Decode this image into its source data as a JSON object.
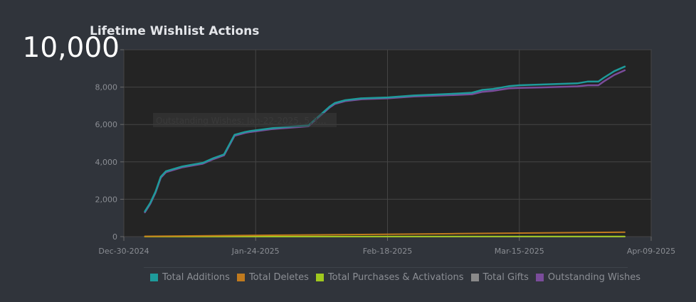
{
  "chart_data": {
    "type": "line",
    "title": "Lifetime Wishlist Actions",
    "x_axis": {
      "type": "date",
      "ticks": [
        "Dec-30-2024",
        "Jan-24-2025",
        "Feb-18-2025",
        "Mar-15-2025",
        "Apr-09-2025"
      ],
      "range": [
        "Dec-30-2024",
        "Apr-09-2025"
      ]
    },
    "y_axis": {
      "ticks": [
        "0",
        "2,000",
        "4,000",
        "6,000",
        "8,000",
        "10,000"
      ],
      "range": [
        0,
        10000
      ]
    },
    "grid": true,
    "legend_position": "bottom",
    "tooltip": "Outstanding Wishes: Jan-22-2025, 5,3…",
    "series": [
      {
        "name": "Total Additions",
        "color": "#1e9b9b",
        "x": [
          "Jan-03-2025",
          "Jan-04-2025",
          "Jan-05-2025",
          "Jan-06-2025",
          "Jan-07-2025",
          "Jan-10-2025",
          "Jan-14-2025",
          "Jan-16-2025",
          "Jan-18-2025",
          "Jan-20-2025",
          "Jan-22-2025",
          "Jan-23-2025",
          "Jan-27-2025",
          "Jan-29-2025",
          "Feb-03-2025",
          "Feb-06-2025",
          "Feb-07-2025",
          "Feb-08-2025",
          "Feb-10-2025",
          "Feb-13-2025",
          "Feb-18-2025",
          "Feb-23-2025",
          "Mar-03-2025",
          "Mar-06-2025",
          "Mar-08-2025",
          "Mar-10-2025",
          "Mar-13-2025",
          "Mar-15-2025",
          "Mar-20-2025",
          "Mar-26-2025",
          "Mar-28-2025",
          "Mar-30-2025",
          "Mar-31-2025",
          "Apr-02-2025",
          "Apr-04-2025"
        ],
        "values": [
          1350,
          1800,
          2400,
          3200,
          3500,
          3750,
          3950,
          4200,
          4400,
          5450,
          5600,
          5650,
          5800,
          5850,
          5950,
          6700,
          6950,
          7150,
          7300,
          7400,
          7450,
          7550,
          7650,
          7700,
          7850,
          7900,
          8050,
          8100,
          8150,
          8200,
          8300,
          8300,
          8500,
          8850,
          9100
        ]
      },
      {
        "name": "Total Deletes",
        "color": "#c07a1e",
        "x": [
          "Jan-03-2025",
          "Feb-03-2025",
          "Mar-03-2025",
          "Apr-04-2025"
        ],
        "values": [
          20,
          90,
          160,
          240
        ]
      },
      {
        "name": "Total Purchases & Activations",
        "color": "#a0c81e",
        "x": [
          "Jan-03-2025",
          "Apr-04-2025"
        ],
        "values": [
          0,
          10
        ]
      },
      {
        "name": "Total Gifts",
        "color": "#8a8a8a",
        "x": [
          "Jan-03-2025",
          "Apr-04-2025"
        ],
        "values": [
          0,
          0
        ]
      },
      {
        "name": "Outstanding Wishes",
        "color": "#7a4c9a",
        "x": [
          "Jan-03-2025",
          "Jan-04-2025",
          "Jan-05-2025",
          "Jan-06-2025",
          "Jan-07-2025",
          "Jan-10-2025",
          "Jan-14-2025",
          "Jan-16-2025",
          "Jan-18-2025",
          "Jan-20-2025",
          "Jan-22-2025",
          "Jan-23-2025",
          "Jan-27-2025",
          "Jan-29-2025",
          "Feb-03-2025",
          "Feb-06-2025",
          "Feb-07-2025",
          "Feb-08-2025",
          "Feb-10-2025",
          "Feb-13-2025",
          "Feb-18-2025",
          "Feb-23-2025",
          "Mar-03-2025",
          "Mar-06-2025",
          "Mar-08-2025",
          "Mar-10-2025",
          "Mar-13-2025",
          "Mar-15-2025",
          "Mar-20-2025",
          "Mar-26-2025",
          "Mar-28-2025",
          "Mar-30-2025",
          "Mar-31-2025",
          "Apr-02-2025",
          "Apr-04-2025"
        ],
        "values": [
          1300,
          1750,
          2350,
          3150,
          3450,
          3700,
          3900,
          4150,
          4350,
          5400,
          5550,
          5600,
          5750,
          5800,
          5900,
          6650,
          6900,
          7100,
          7250,
          7350,
          7400,
          7500,
          7580,
          7620,
          7750,
          7800,
          7930,
          7960,
          7990,
          8040,
          8100,
          8100,
          8300,
          8650,
          8900
        ]
      }
    ]
  }
}
